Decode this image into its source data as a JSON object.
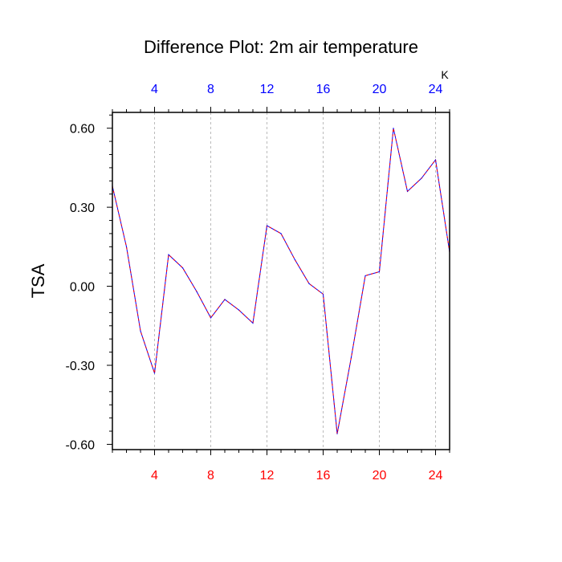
{
  "chart_data": {
    "type": "line",
    "title": "Difference Plot: 2m air temperature",
    "ylabel": "TSA",
    "units": "K",
    "xlim": [
      1,
      25
    ],
    "ylim": [
      -0.62,
      0.66
    ],
    "x_ticks": [
      "4",
      "8",
      "12",
      "16",
      "20",
      "24"
    ],
    "x_tick_values": [
      4,
      8,
      12,
      16,
      20,
      24
    ],
    "y_ticks": [
      "0.60",
      "0.30",
      "0.00",
      "-0.30",
      "-0.60"
    ],
    "y_tick_values": [
      0.6,
      0.3,
      0.0,
      -0.3,
      -0.6
    ],
    "grid": "vertical-dashed",
    "colors": {
      "top_ticks": "#0000ff",
      "bottom_ticks": "#ff0000",
      "line_primary": "#0000ff",
      "line_secondary": "#ff0000"
    },
    "x": [
      1,
      2,
      3,
      4,
      5,
      6,
      7,
      8,
      9,
      10,
      11,
      12,
      13,
      14,
      15,
      16,
      17,
      18,
      19,
      20,
      21,
      22,
      23,
      24,
      25
    ],
    "series": [
      {
        "values": [
          0.38,
          0.15,
          -0.17,
          -0.33,
          0.12,
          0.07,
          -0.02,
          -0.12,
          -0.05,
          -0.09,
          -0.14,
          0.23,
          0.2,
          0.1,
          0.01,
          -0.03,
          -0.56,
          -0.27,
          0.04,
          0.055,
          0.6,
          0.36,
          0.41,
          0.48,
          0.13
        ]
      }
    ]
  }
}
